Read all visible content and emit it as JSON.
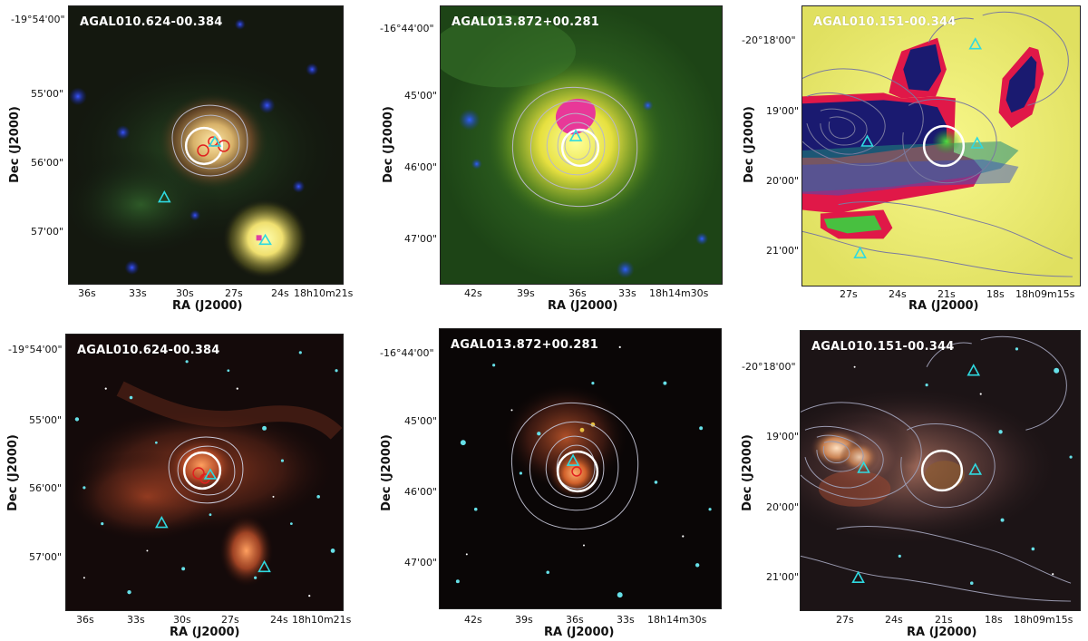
{
  "labels": {
    "ra": "RA (J2000)",
    "dec": "Dec (J2000)"
  },
  "panels": [
    {
      "title": "AGAL010.624-00.384",
      "style": "three-color-ir",
      "ra_ticks": [
        "36s",
        "33s",
        "30s",
        "27s",
        "24s",
        "18h10m21s"
      ],
      "dec_ticks": [
        "-19°54'00\"",
        "55'00\"",
        "56'00\"",
        "57'00\""
      ]
    },
    {
      "title": "AGAL013.872+00.281",
      "style": "three-color-ir",
      "ra_ticks": [
        "42s",
        "39s",
        "36s",
        "33s",
        "18h14m30s"
      ],
      "dec_ticks": [
        "-16°44'00\"",
        "45'00\"",
        "46'00\"",
        "47'00\""
      ]
    },
    {
      "title": "AGAL010.151-00.344",
      "style": "three-color-ir",
      "ra_ticks": [
        "27s",
        "24s",
        "21s",
        "18s",
        "18h09m15s"
      ],
      "dec_ticks": [
        "-20°18'00\"",
        "19'00\"",
        "20'00\"",
        "21'00\""
      ]
    },
    {
      "title": "AGAL010.624-00.384",
      "style": "spitzer",
      "ra_ticks": [
        "36s",
        "33s",
        "30s",
        "27s",
        "24s",
        "18h10m21s"
      ],
      "dec_ticks": [
        "-19°54'00\"",
        "55'00\"",
        "56'00\"",
        "57'00\""
      ]
    },
    {
      "title": "AGAL013.872+00.281",
      "style": "spitzer",
      "ra_ticks": [
        "42s",
        "39s",
        "36s",
        "33s",
        "18h14m30s"
      ],
      "dec_ticks": [
        "-16°44'00\"",
        "45'00\"",
        "46'00\"",
        "47'00\""
      ]
    },
    {
      "title": "AGAL010.151-00.344",
      "style": "spitzer",
      "ra_ticks": [
        "27s",
        "24s",
        "21s",
        "18s",
        "18h09m15s"
      ],
      "dec_ticks": [
        "-20°18'00\"",
        "19'00\"",
        "20'00\"",
        "21'00\""
      ]
    }
  ],
  "colors": {
    "contour": "#b8b8c8",
    "beam_circle": "#ffffff",
    "triangle": "#2fd9e0",
    "red_contour": "#e02020"
  }
}
